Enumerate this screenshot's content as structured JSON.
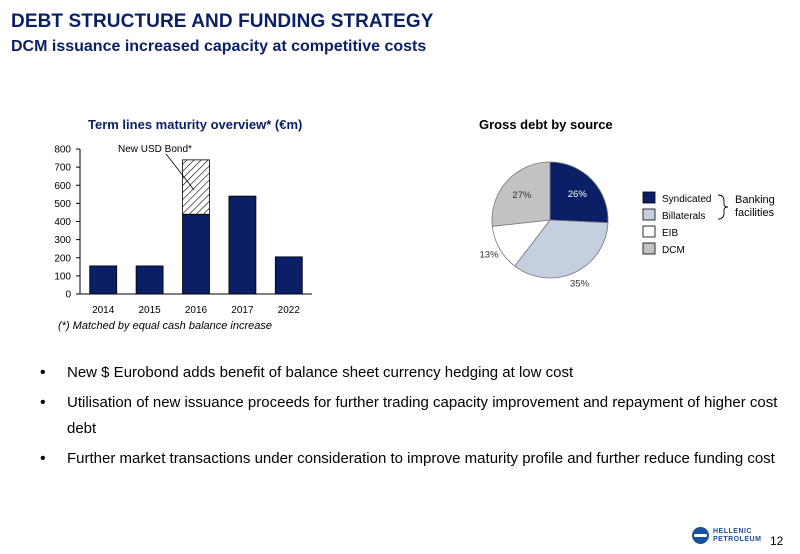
{
  "header": {
    "title": "DEBT STRUCTURE AND FUNDING STRATEGY",
    "subtitle": "DCM issuance increased capacity at competitive costs"
  },
  "chart_data": [
    {
      "type": "bar",
      "title": "Term lines maturity overview* (€m)",
      "categories": [
        "2014",
        "2015",
        "2016",
        "2017",
        "2022"
      ],
      "series": [
        {
          "name": "",
          "values": [
            155,
            155,
            440,
            540,
            205
          ],
          "color": "#0a1f66"
        },
        {
          "name": "New USD Bond*",
          "values": [
            0,
            0,
            300,
            0,
            0
          ],
          "pattern": "hatched"
        }
      ],
      "stacked": true,
      "ylim": [
        0,
        800
      ],
      "yticks": [
        0,
        100,
        200,
        300,
        400,
        500,
        600,
        700,
        800
      ],
      "annotation": "New USD Bond*",
      "footnote": "(*) Matched by equal cash balance increase"
    },
    {
      "type": "pie",
      "title": "Gross debt by source",
      "slices": [
        {
          "name": "Syndicated",
          "value": 26,
          "label": "26%",
          "color": "#0a1f66"
        },
        {
          "name": "Billaterals",
          "value": 35,
          "label": "35%",
          "color": "#c5cfe0"
        },
        {
          "name": "EIB",
          "value": 13,
          "label": "13%",
          "color": "#ffffff"
        },
        {
          "name": "DCM",
          "value": 27,
          "label": "27%",
          "color": "#c2c2c2"
        }
      ],
      "legend_group_label": "Banking facilities",
      "legend_position": "right"
    }
  ],
  "bullets": [
    "New $ Eurobond adds benefit of balance sheet currency hedging at low cost",
    "Utilisation of new issuance proceeds for further trading capacity improvement and repayment of higher cost debt",
    "Further market transactions under consideration to improve maturity profile and further reduce funding cost"
  ],
  "footer": {
    "logo_line1": "HELLENIC",
    "logo_line2": "PETROLEUM",
    "page_number": "12"
  }
}
